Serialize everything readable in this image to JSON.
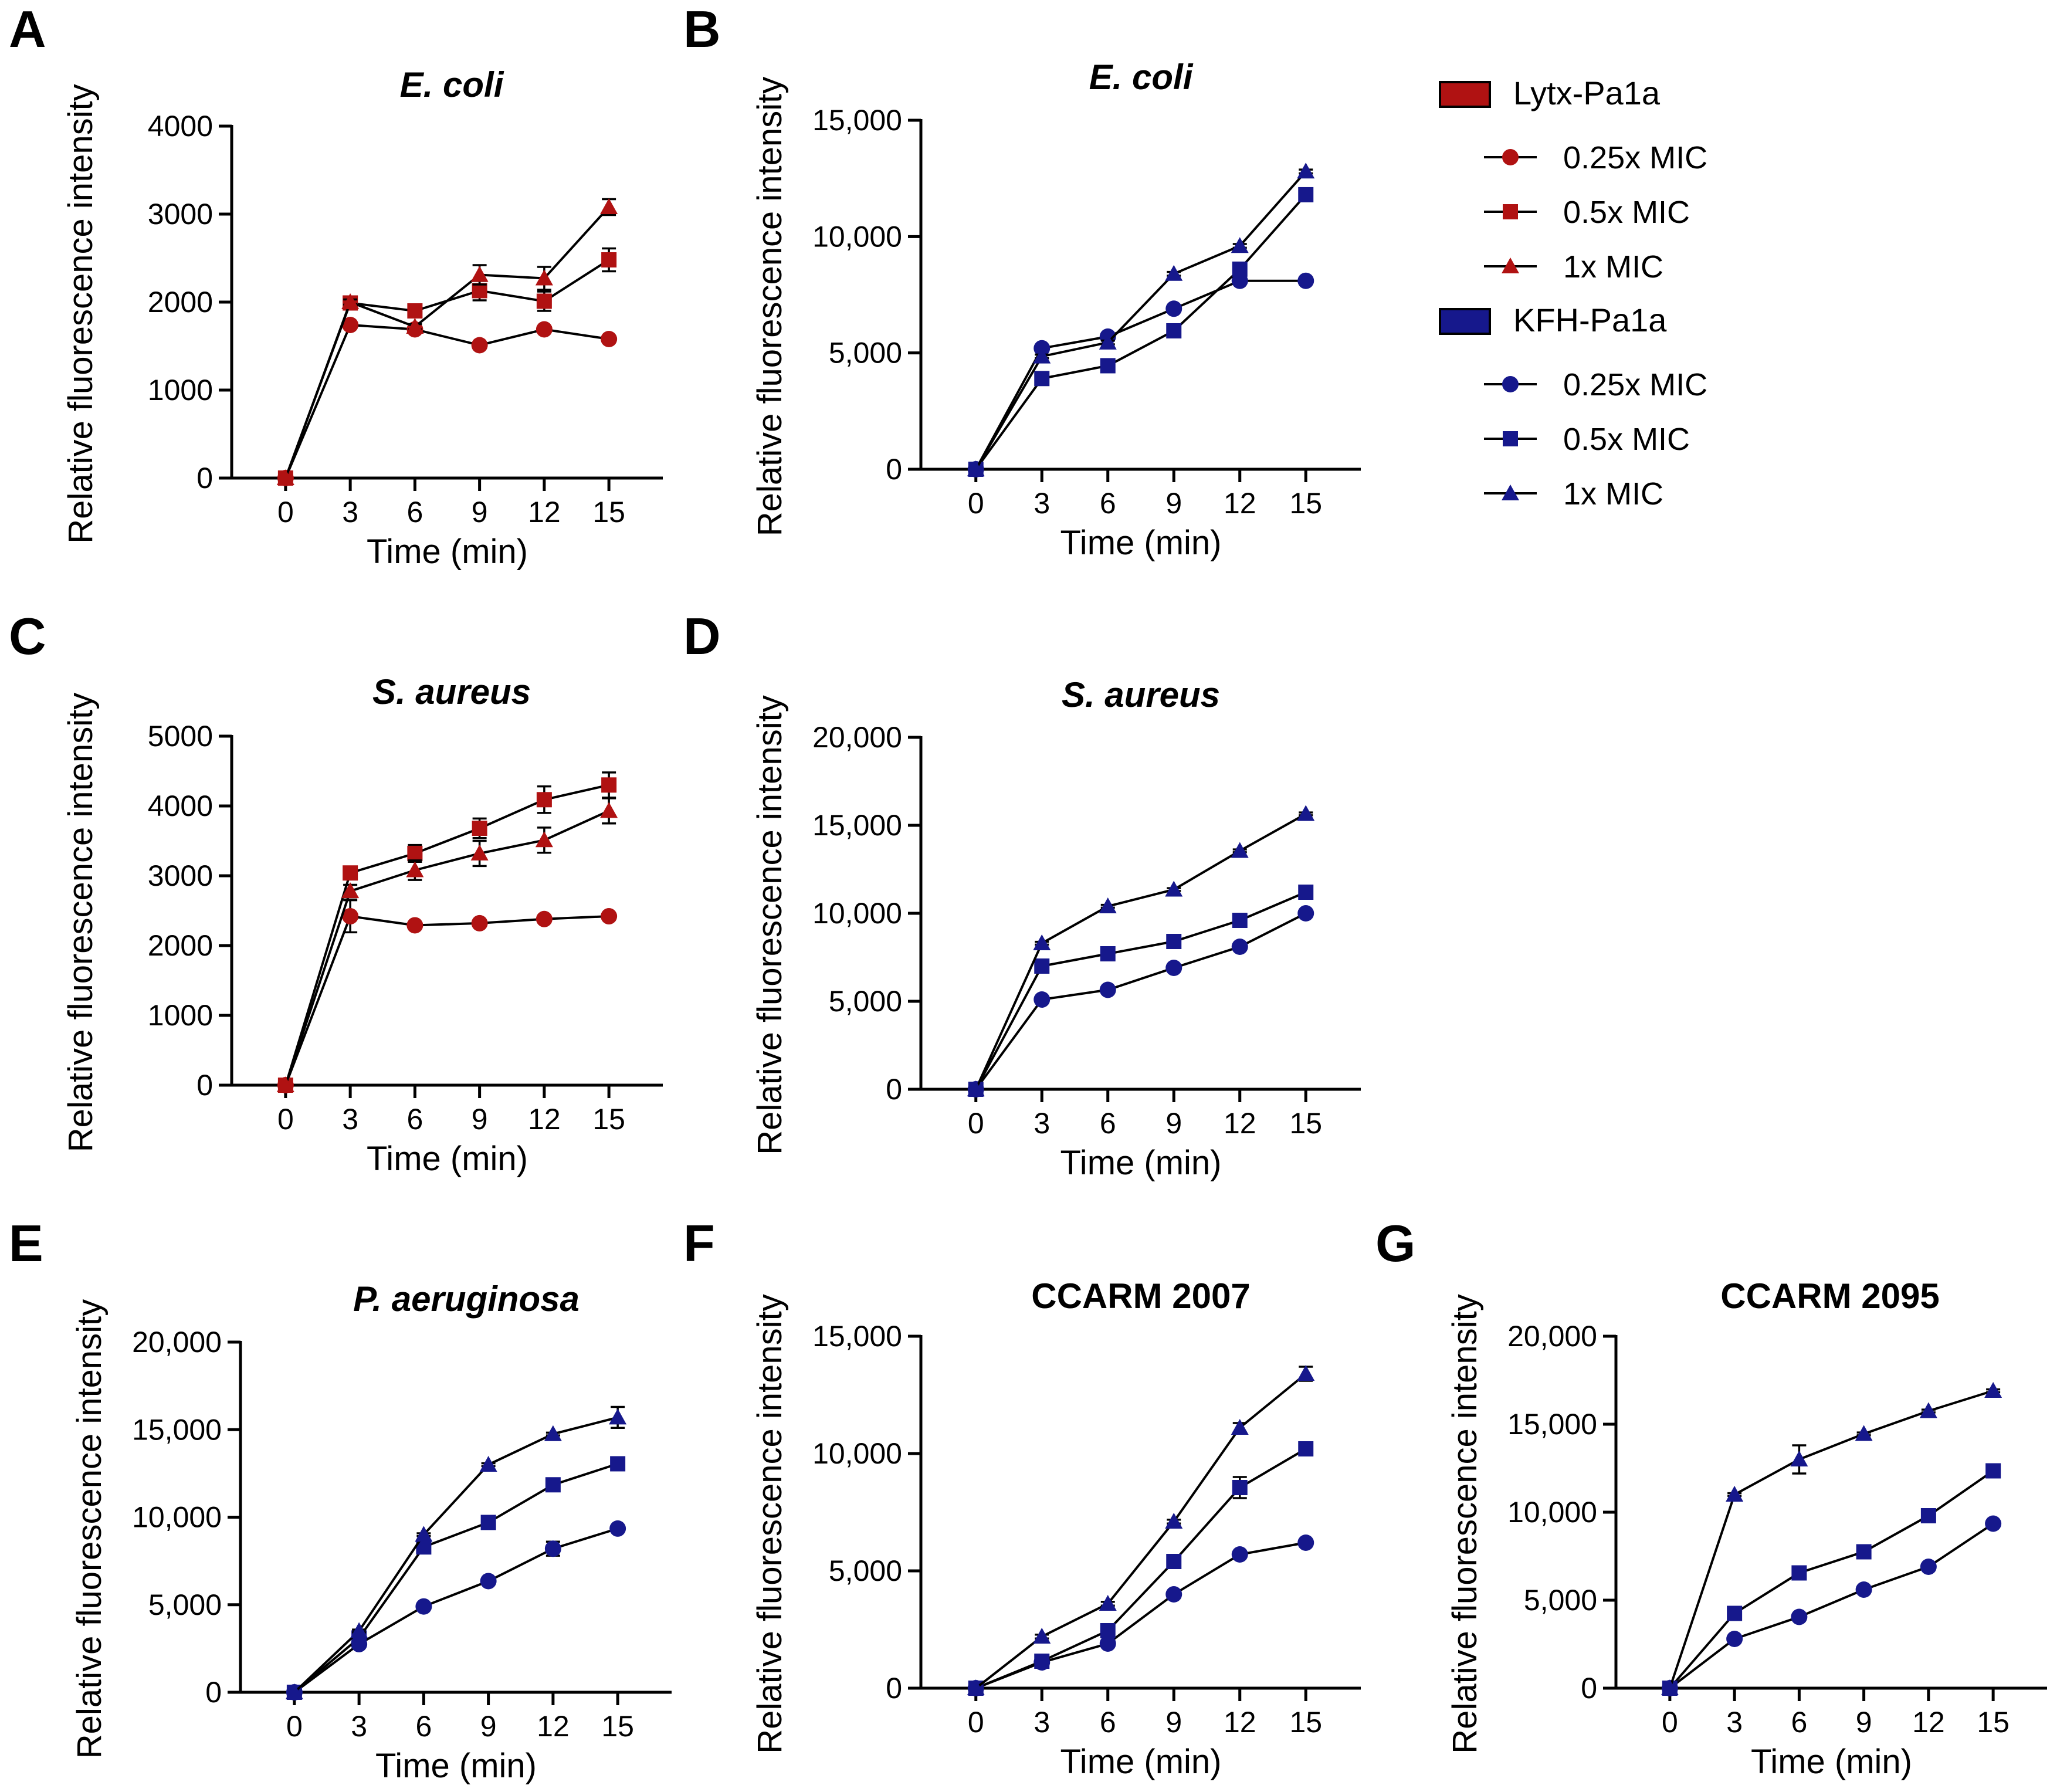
{
  "figure": {
    "colors": {
      "lytx": "#B01212",
      "kfh": "#16188C",
      "axis": "#000000"
    },
    "legend": {
      "groups": [
        {
          "label": "Lytx-Pa1a",
          "color": "#B01212",
          "entries": [
            {
              "label": "0.25x MIC",
              "marker": "circle"
            },
            {
              "label": "0.5x MIC",
              "marker": "square"
            },
            {
              "label": "1x MIC",
              "marker": "triangle"
            }
          ]
        },
        {
          "label": "KFH-Pa1a",
          "color": "#16188C",
          "entries": [
            {
              "label": "0.25x MIC",
              "marker": "circle"
            },
            {
              "label": "0.5x MIC",
              "marker": "square"
            },
            {
              "label": "1x MIC",
              "marker": "triangle"
            }
          ]
        }
      ]
    }
  },
  "chart_data": [
    {
      "panel": "A",
      "type": "line",
      "title": "E. coli",
      "title_italic": true,
      "xlabel": "Time (min)",
      "ylabel": "Relative fluorescence intensity",
      "x": [
        0,
        3,
        6,
        9,
        12,
        15
      ],
      "ylim": [
        0,
        4000
      ],
      "yticks": [
        0,
        1000,
        2000,
        3000,
        4000
      ],
      "ytick_labels": [
        "0",
        "1000",
        "2000",
        "3000",
        "4000"
      ],
      "series": [
        {
          "name": "Lytx-Pa1a 0.25x MIC",
          "group": "lytx",
          "marker": "circle",
          "values": [
            0,
            1740,
            1690,
            1510,
            1690,
            1580
          ],
          "errors": [
            0,
            20,
            20,
            20,
            20,
            20
          ]
        },
        {
          "name": "Lytx-Pa1a 0.5x MIC",
          "group": "lytx",
          "marker": "square",
          "values": [
            0,
            1990,
            1900,
            2130,
            2010,
            2480
          ],
          "errors": [
            0,
            30,
            30,
            110,
            110,
            130
          ]
        },
        {
          "name": "Lytx-Pa1a 1x MIC",
          "group": "lytx",
          "marker": "triangle",
          "values": [
            0,
            2000,
            1720,
            2310,
            2270,
            3080
          ],
          "errors": [
            0,
            30,
            30,
            110,
            130,
            90
          ]
        }
      ]
    },
    {
      "panel": "B",
      "type": "line",
      "title": "E. coli",
      "title_italic": true,
      "xlabel": "Time (min)",
      "ylabel": "Relative fluorescence intensity",
      "x": [
        0,
        3,
        6,
        9,
        12,
        15
      ],
      "ylim": [
        0,
        15000
      ],
      "yticks": [
        0,
        5000,
        10000,
        15000
      ],
      "ytick_labels": [
        "0",
        "5,000",
        "10,000",
        "15,000"
      ],
      "series": [
        {
          "name": "KFH-Pa1a 0.25x MIC",
          "group": "kfh",
          "marker": "circle",
          "values": [
            0,
            5200,
            5700,
            6900,
            8100,
            8100
          ],
          "errors": [
            0,
            80,
            80,
            80,
            80,
            80
          ]
        },
        {
          "name": "KFH-Pa1a 0.5x MIC",
          "group": "kfh",
          "marker": "square",
          "values": [
            0,
            3900,
            4450,
            5950,
            8600,
            11800
          ],
          "errors": [
            0,
            80,
            80,
            80,
            100,
            100
          ]
        },
        {
          "name": "KFH-Pa1a 1x MIC",
          "group": "kfh",
          "marker": "triangle",
          "values": [
            0,
            4850,
            5450,
            8400,
            9600,
            12800
          ],
          "errors": [
            0,
            80,
            80,
            80,
            80,
            80
          ]
        }
      ]
    },
    {
      "panel": "C",
      "type": "line",
      "title": "S. aureus",
      "title_italic": true,
      "xlabel": "Time (min)",
      "ylabel": "Relative fluorescence intensity",
      "x": [
        0,
        3,
        6,
        9,
        12,
        15
      ],
      "ylim": [
        0,
        5000
      ],
      "yticks": [
        0,
        1000,
        2000,
        3000,
        4000,
        5000
      ],
      "ytick_labels": [
        "0",
        "1000",
        "2000",
        "3000",
        "4000",
        "5000"
      ],
      "series": [
        {
          "name": "Lytx-Pa1a 0.25x MIC",
          "group": "lytx",
          "marker": "circle",
          "values": [
            0,
            2420,
            2290,
            2320,
            2380,
            2420
          ],
          "errors": [
            0,
            230,
            20,
            20,
            20,
            20
          ]
        },
        {
          "name": "Lytx-Pa1a 0.5x MIC",
          "group": "lytx",
          "marker": "square",
          "values": [
            0,
            3040,
            3320,
            3680,
            4090,
            4300
          ],
          "errors": [
            0,
            40,
            120,
            140,
            190,
            180
          ]
        },
        {
          "name": "Lytx-Pa1a 1x MIC",
          "group": "lytx",
          "marker": "triangle",
          "values": [
            0,
            2780,
            3080,
            3320,
            3510,
            3930
          ],
          "errors": [
            0,
            90,
            140,
            180,
            180,
            180
          ]
        }
      ]
    },
    {
      "panel": "D",
      "type": "line",
      "title": "S. aureus",
      "title_italic": true,
      "xlabel": "Time (min)",
      "ylabel": "Relative fluorescence intensity",
      "x": [
        0,
        3,
        6,
        9,
        12,
        15
      ],
      "ylim": [
        0,
        20000
      ],
      "yticks": [
        0,
        5000,
        10000,
        15000,
        20000
      ],
      "ytick_labels": [
        "0",
        "5,000",
        "10,000",
        "15,000",
        "20,000"
      ],
      "series": [
        {
          "name": "KFH-Pa1a 0.25x MIC",
          "group": "kfh",
          "marker": "circle",
          "values": [
            0,
            5100,
            5650,
            6900,
            8100,
            10000
          ],
          "errors": [
            0,
            80,
            80,
            80,
            80,
            80
          ]
        },
        {
          "name": "KFH-Pa1a 0.5x MIC",
          "group": "kfh",
          "marker": "square",
          "values": [
            0,
            7000,
            7700,
            8400,
            9600,
            11200
          ],
          "errors": [
            0,
            80,
            80,
            80,
            80,
            80
          ]
        },
        {
          "name": "KFH-Pa1a 1x MIC",
          "group": "kfh",
          "marker": "triangle",
          "values": [
            0,
            8300,
            10400,
            11350,
            13550,
            15650
          ],
          "errors": [
            0,
            80,
            80,
            80,
            80,
            80
          ]
        }
      ]
    },
    {
      "panel": "E",
      "type": "line",
      "title": "P. aeruginosa",
      "title_italic": true,
      "xlabel": "Time (min)",
      "ylabel": "Relative fluorescence intensity",
      "x": [
        0,
        3,
        6,
        9,
        12,
        15
      ],
      "ylim": [
        0,
        20000
      ],
      "yticks": [
        0,
        5000,
        10000,
        15000,
        20000
      ],
      "ytick_labels": [
        "0",
        "5,000",
        "10,000",
        "15,000",
        "20,000"
      ],
      "series": [
        {
          "name": "KFH-Pa1a 0.25x MIC",
          "group": "kfh",
          "marker": "circle",
          "values": [
            0,
            2750,
            4900,
            6350,
            8200,
            9350
          ],
          "errors": [
            0,
            80,
            80,
            80,
            400,
            80
          ]
        },
        {
          "name": "KFH-Pa1a 0.5x MIC",
          "group": "kfh",
          "marker": "square",
          "values": [
            0,
            3100,
            8300,
            9700,
            11850,
            13050
          ],
          "errors": [
            0,
            80,
            300,
            80,
            80,
            80
          ]
        },
        {
          "name": "KFH-Pa1a 1x MIC",
          "group": "kfh",
          "marker": "triangle",
          "values": [
            0,
            3500,
            9000,
            13000,
            14750,
            15700
          ],
          "errors": [
            0,
            80,
            80,
            80,
            80,
            600
          ]
        }
      ]
    },
    {
      "panel": "F",
      "type": "line",
      "title": "CCARM 2007",
      "title_italic": false,
      "xlabel": "Time (min)",
      "ylabel": "Relative fluorescence intensity",
      "x": [
        0,
        3,
        6,
        9,
        12,
        15
      ],
      "ylim": [
        0,
        15000
      ],
      "yticks": [
        0,
        5000,
        10000,
        15000
      ],
      "ytick_labels": [
        "0",
        "5,000",
        "10,000",
        "15,000"
      ],
      "series": [
        {
          "name": "KFH-Pa1a 0.25x MIC",
          "group": "kfh",
          "marker": "circle",
          "values": [
            0,
            1100,
            1900,
            4000,
            5700,
            6200
          ],
          "errors": [
            0,
            80,
            80,
            80,
            80,
            80
          ]
        },
        {
          "name": "KFH-Pa1a 0.5x MIC",
          "group": "kfh",
          "marker": "square",
          "values": [
            0,
            1150,
            2450,
            5400,
            8550,
            10200
          ],
          "errors": [
            0,
            80,
            80,
            80,
            450,
            80
          ]
        },
        {
          "name": "KFH-Pa1a 1x MIC",
          "group": "kfh",
          "marker": "triangle",
          "values": [
            0,
            2200,
            3600,
            7100,
            11100,
            13400
          ],
          "errors": [
            0,
            80,
            80,
            80,
            200,
            300
          ]
        }
      ]
    },
    {
      "panel": "G",
      "type": "line",
      "title": "CCARM 2095",
      "title_italic": false,
      "xlabel": "Time (min)",
      "ylabel": "Relative fluorescence intensity",
      "x": [
        0,
        3,
        6,
        9,
        12,
        15
      ],
      "ylim": [
        0,
        20000
      ],
      "yticks": [
        0,
        5000,
        10000,
        15000,
        20000
      ],
      "ytick_labels": [
        "0",
        "5,000",
        "10,000",
        "15,000",
        "20,000"
      ],
      "series": [
        {
          "name": "KFH-Pa1a 0.25x MIC",
          "group": "kfh",
          "marker": "circle",
          "values": [
            0,
            2800,
            4050,
            5600,
            6900,
            9350
          ],
          "errors": [
            0,
            80,
            80,
            80,
            80,
            80
          ]
        },
        {
          "name": "KFH-Pa1a 0.5x MIC",
          "group": "kfh",
          "marker": "square",
          "values": [
            0,
            4250,
            6550,
            7750,
            9800,
            12350
          ],
          "errors": [
            0,
            80,
            80,
            80,
            80,
            80
          ]
        },
        {
          "name": "KFH-Pa1a 1x MIC",
          "group": "kfh",
          "marker": "triangle",
          "values": [
            0,
            11000,
            13000,
            14450,
            15750,
            16900
          ],
          "errors": [
            0,
            80,
            800,
            80,
            80,
            80
          ]
        }
      ]
    }
  ]
}
